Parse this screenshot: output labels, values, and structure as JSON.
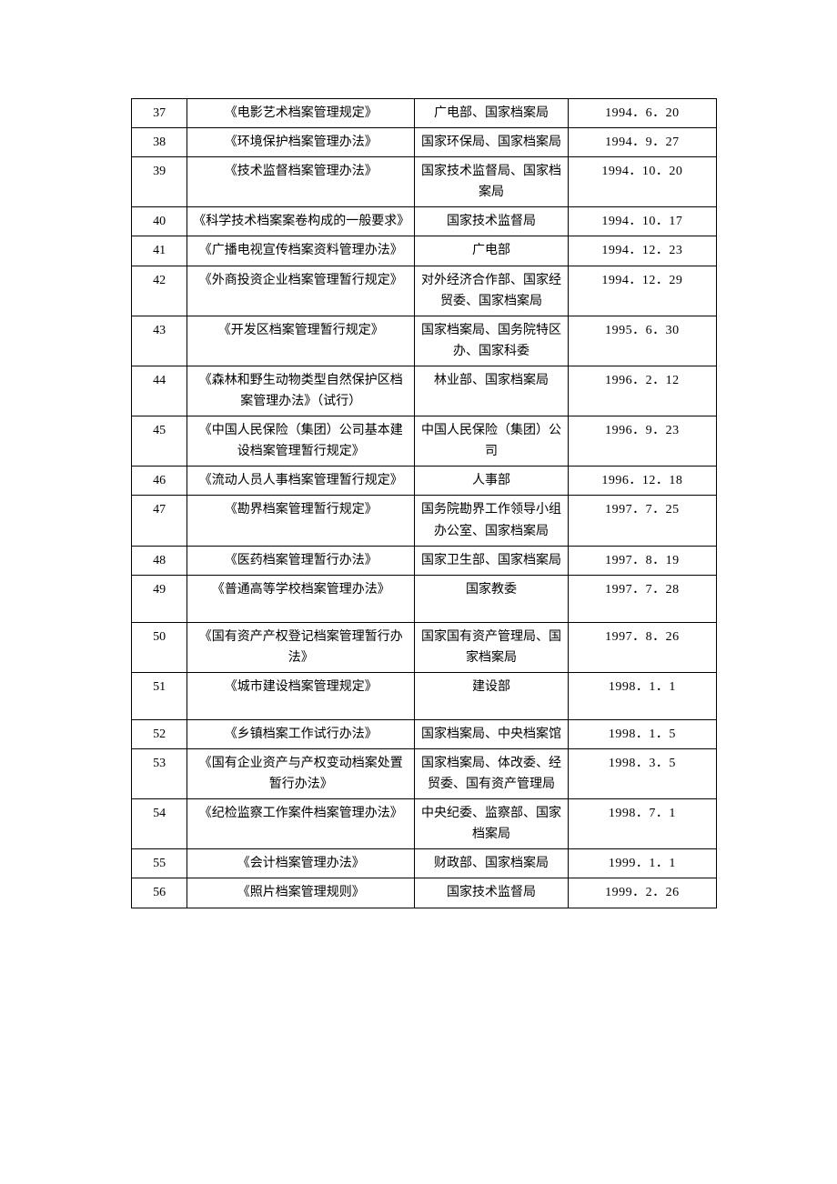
{
  "table": {
    "rows": [
      {
        "num": "37",
        "title": "《电影艺术档案管理规定》",
        "org": "广电部、国家档案局",
        "date": "1994．6．20",
        "tall": false
      },
      {
        "num": "38",
        "title": "《环境保护档案管理办法》",
        "org": "国家环保局、国家档案局",
        "date": "1994．9．27",
        "tall": false
      },
      {
        "num": "39",
        "title": "《技术监督档案管理办法》",
        "org": "国家技术监督局、国家档案局",
        "date": "1994．10．20",
        "tall": false
      },
      {
        "num": "40",
        "title": "《科学技术档案案卷构成的一般要求》",
        "org": "国家技术监督局",
        "date": "1994．10．17",
        "tall": false
      },
      {
        "num": "41",
        "title": "《广播电视宣传档案资料管理办法》",
        "org": "广电部",
        "date": "1994．12．23",
        "tall": false
      },
      {
        "num": "42",
        "title": "《外商投资企业档案管理暂行规定》",
        "org": "对外经济合作部、国家经贸委、国家档案局",
        "date": "1994．12．29",
        "tall": false
      },
      {
        "num": "43",
        "title": "《开发区档案管理暂行规定》",
        "org": "国家档案局、国务院特区办、国家科委",
        "date": "1995．6．30",
        "tall": false
      },
      {
        "num": "44",
        "title": "《森林和野生动物类型自然保护区档案管理办法》（试行）",
        "org": "林业部、国家档案局",
        "date": "1996．2．12",
        "tall": false
      },
      {
        "num": "45",
        "title": "《中国人民保险（集团）公司基本建设档案管理暂行规定》",
        "org": "中国人民保险（集团）公司",
        "date": "1996．9．23",
        "tall": false
      },
      {
        "num": "46",
        "title": "《流动人员人事档案管理暂行规定》",
        "org": "人事部",
        "date": "1996．12．18",
        "tall": false
      },
      {
        "num": "47",
        "title": "《勘界档案管理暂行规定》",
        "org": "国务院勘界工作领导小组办公室、国家档案局",
        "date": "1997．7．25",
        "tall": false
      },
      {
        "num": "48",
        "title": "《医药档案管理暂行办法》",
        "org": "国家卫生部、国家档案局",
        "date": "1997．8．19",
        "tall": false
      },
      {
        "num": "49",
        "title": "《普通高等学校档案管理办法》",
        "org": "国家教委",
        "date": "1997．7．28",
        "tall": true
      },
      {
        "num": "50",
        "title": "《国有资产产权登记档案管理暂行办法》",
        "org": "国家国有资产管理局、国家档案局",
        "date": "1997．8．26",
        "tall": false
      },
      {
        "num": "51",
        "title": "《城市建设档案管理规定》",
        "org": "建设部",
        "date": "1998．1．1",
        "tall": true
      },
      {
        "num": "52",
        "title": "《乡镇档案工作试行办法》",
        "org": "国家档案局、中央档案馆",
        "date": "1998．1．5",
        "tall": false
      },
      {
        "num": "53",
        "title": "《国有企业资产与产权变动档案处置暂行办法》",
        "org": "国家档案局、体改委、经贸委、国有资产管理局",
        "date": "1998．3．5",
        "tall": false
      },
      {
        "num": "54",
        "title": "《纪检监察工作案件档案管理办法》",
        "org": "中央纪委、监察部、国家档案局",
        "date": "1998．7．1",
        "tall": false
      },
      {
        "num": "55",
        "title": "《会计档案管理办法》",
        "org": "财政部、国家档案局",
        "date": "1999．1．1",
        "tall": false
      },
      {
        "num": "56",
        "title": "《照片档案管理规则》",
        "org": "国家技术监督局",
        "date": "1999．2．26",
        "tall": false
      }
    ]
  }
}
